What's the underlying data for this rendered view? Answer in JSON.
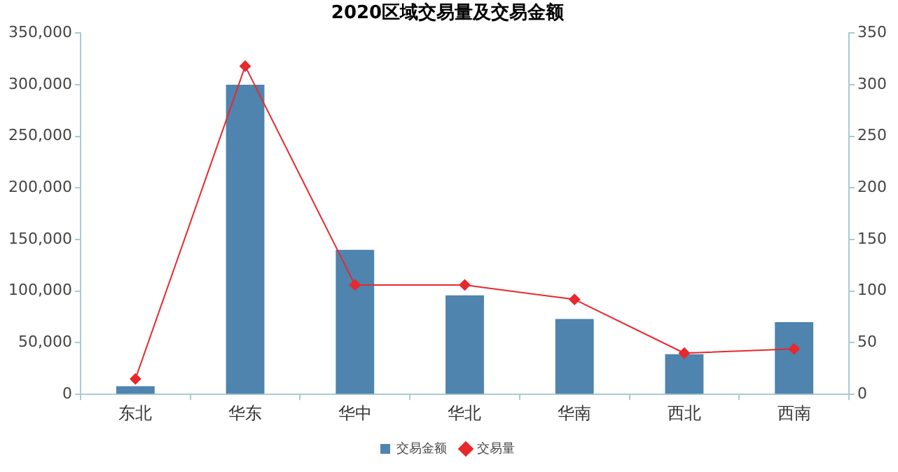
{
  "chart_data": {
    "type": "bar",
    "title": "2020区域交易量及交易金额",
    "categories": [
      "东北",
      "华东",
      "华中",
      "华北",
      "华南",
      "西北",
      "西南"
    ],
    "series": [
      {
        "name": "交易金额",
        "color": "#4e84ae",
        "values": [
          8000,
          300000,
          140000,
          96000,
          73000,
          39000,
          70000
        ]
      },
      {
        "name": "交易量",
        "type": "line",
        "axis": "y2",
        "color": "#e8282c",
        "values": [
          15,
          318,
          106,
          106,
          92,
          40,
          44
        ]
      }
    ],
    "ylim": [
      0,
      350000
    ],
    "yticks": [
      {
        "value": 0,
        "label": "0"
      },
      {
        "value": 50000,
        "label": "50,000"
      },
      {
        "value": 100000,
        "label": "100,000"
      },
      {
        "value": 150000,
        "label": "150,000"
      },
      {
        "value": 200000,
        "label": "200,000"
      },
      {
        "value": 250000,
        "label": "250,000"
      },
      {
        "value": 300000,
        "label": "300,000"
      },
      {
        "value": 350000,
        "label": "350,000"
      }
    ],
    "y2lim": [
      0,
      350
    ],
    "y2ticks": [
      0,
      50,
      100,
      150,
      200,
      250,
      300,
      350
    ],
    "grid": false,
    "legend": "bottom",
    "marker": "diamond",
    "line_style": "solid"
  }
}
